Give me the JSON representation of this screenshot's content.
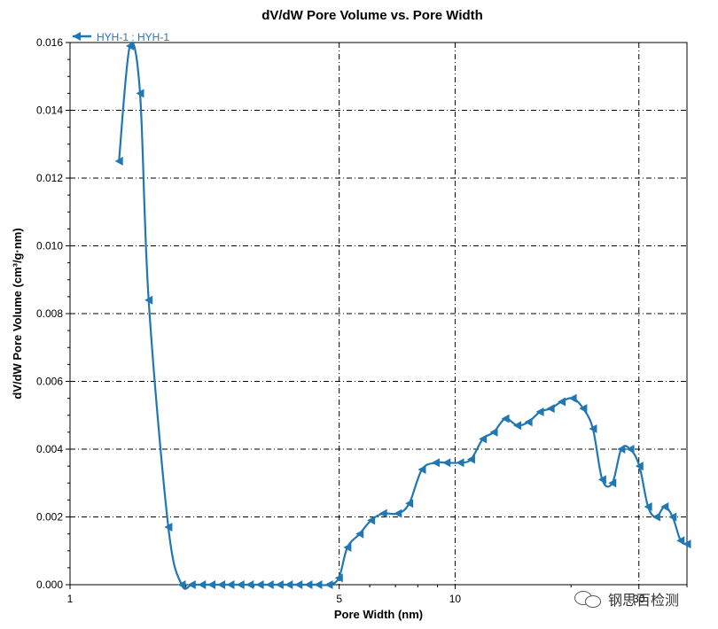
{
  "chart_data": {
    "type": "line",
    "title": "dV/dW Pore Volume vs. Pore Width",
    "xlabel": "Pore Width (nm)",
    "ylabel": "dV/dW Pore Volume (cm³/g·nm)",
    "x_scale": "log",
    "xlim": [
      1,
      40
    ],
    "ylim": [
      0,
      0.016
    ],
    "x_ticks": [
      1,
      5,
      10,
      30
    ],
    "x_tick_labels": [
      "1",
      "5",
      "10",
      "30"
    ],
    "y_ticks": [
      0,
      0.002,
      0.004,
      0.006,
      0.008,
      0.01,
      0.012,
      0.014,
      0.016
    ],
    "y_tick_labels": [
      "0.000",
      "0.002",
      "0.004",
      "0.006",
      "0.008",
      "0.010",
      "0.012",
      "0.014",
      "0.016"
    ],
    "grid": true,
    "legend_position": "top-left",
    "series": [
      {
        "name": "HYH-1 : HYH-1",
        "color": "#1f77b4",
        "marker": "left-triangle",
        "x": [
          1.34,
          1.43,
          1.52,
          1.6,
          1.8,
          1.95,
          2.07,
          2.2,
          2.33,
          2.47,
          2.61,
          2.77,
          2.93,
          3.11,
          3.3,
          3.5,
          3.7,
          3.92,
          4.16,
          4.41,
          4.7,
          4.99,
          5.25,
          5.65,
          6.05,
          6.5,
          7.1,
          7.6,
          8.2,
          8.9,
          9.5,
          10.3,
          11.0,
          11.8,
          12.6,
          13.5,
          14.5,
          15.5,
          16.6,
          17.7,
          18.9,
          20.2,
          21.5,
          22.8,
          24.1,
          25.6,
          27.0,
          28.5,
          30.1,
          31.7,
          33.3,
          35.0,
          36.7,
          38.5,
          40.0
        ],
        "y": [
          0.0125,
          0.0159,
          0.0145,
          0.0084,
          0.0017,
          0.0,
          0.0,
          0.0,
          0.0,
          0.0,
          0.0,
          0.0,
          0.0,
          0.0,
          0.0,
          0.0,
          0.0,
          0.0,
          0.0,
          0.0,
          0.0,
          0.0002,
          0.0011,
          0.0015,
          0.0019,
          0.0021,
          0.0021,
          0.0024,
          0.0034,
          0.0036,
          0.0036,
          0.0036,
          0.0037,
          0.0043,
          0.0045,
          0.0049,
          0.0047,
          0.0048,
          0.0051,
          0.0052,
          0.0054,
          0.0055,
          0.0052,
          0.0046,
          0.0031,
          0.003,
          0.004,
          0.004,
          0.0035,
          0.0023,
          0.002,
          0.0023,
          0.002,
          0.0013,
          0.0012
        ]
      }
    ]
  },
  "watermark": {
    "text": "钢思百检测",
    "icon": "wechat-icon"
  }
}
